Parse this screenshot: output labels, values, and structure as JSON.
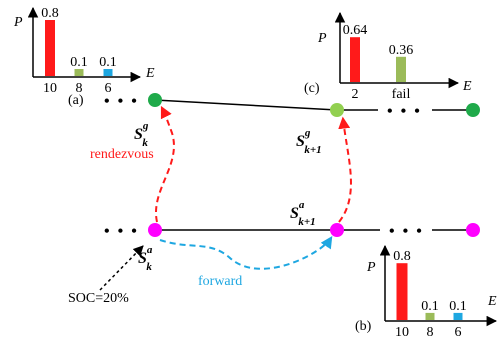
{
  "panels": {
    "a": {
      "label": "(a)",
      "y_label": "P",
      "x_label": "E",
      "bars": [
        {
          "category": "10",
          "value": 0.8,
          "value_label": "0.8",
          "color": "#ff1a1a"
        },
        {
          "category": "8",
          "value": 0.1,
          "value_label": "0.1",
          "color": "#9bbb59"
        },
        {
          "category": "6",
          "value": 0.1,
          "value_label": "0.1",
          "color": "#1ea7e1"
        }
      ]
    },
    "b": {
      "label": "(b)",
      "y_label": "P",
      "x_label": "E",
      "bars": [
        {
          "category": "10",
          "value": 0.8,
          "value_label": "0.8",
          "color": "#ff1a1a"
        },
        {
          "category": "8",
          "value": 0.1,
          "value_label": "0.1",
          "color": "#9bbb59"
        },
        {
          "category": "6",
          "value": 0.1,
          "value_label": "0.1",
          "color": "#1ea7e1"
        }
      ]
    },
    "c": {
      "label": "(c)",
      "y_label": "P",
      "x_label": "E",
      "bars": [
        {
          "category": "2",
          "value": 0.64,
          "value_label": "0.64",
          "color": "#ff1a1a"
        },
        {
          "category": "fail",
          "value": 0.36,
          "value_label": "0.36",
          "color": "#9bbb59"
        }
      ]
    }
  },
  "states": {
    "sg_k": {
      "symbol": "S",
      "sup": "g",
      "sub": "k"
    },
    "sg_k1": {
      "symbol": "S",
      "sup": "g",
      "sub": "k+1"
    },
    "sa_k": {
      "symbol": "S",
      "sup": "a",
      "sub": "k"
    },
    "sa_k1": {
      "symbol": "S",
      "sup": "a",
      "sub": "k+1"
    }
  },
  "edges": {
    "rendezvous": "rendezvous",
    "forward": "forward"
  },
  "annotations": {
    "soc": "SOC=20%",
    "ellipsis": "• • •"
  },
  "colors": {
    "ground_node": "#1faa4a",
    "ground_node_light": "#92d050",
    "aerial_node": "#ff00ff",
    "rendezvous_arrow": "#ff1a1a",
    "forward_arrow": "#1ea7e1"
  }
}
